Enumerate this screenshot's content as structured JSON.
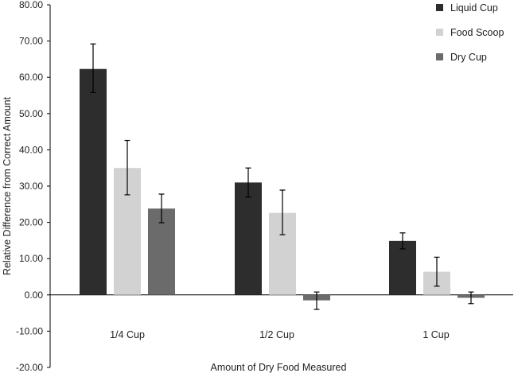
{
  "chart_data": {
    "type": "bar",
    "title": "",
    "xlabel": "Amount of Dry Food Measured",
    "ylabel": "Relative Difference from Correct Amount",
    "ylim": [
      -20,
      80
    ],
    "yticks": [
      "80.00",
      "70.00",
      "60.00",
      "50.00",
      "40.00",
      "30.00",
      "20.00",
      "10.00",
      "0.00",
      "-10.00",
      "-20.00"
    ],
    "ytick_values": [
      80,
      70,
      60,
      50,
      40,
      30,
      20,
      10,
      0,
      -10,
      -20
    ],
    "categories": [
      "1/4 Cup",
      "1/2 Cup",
      "1 Cup"
    ],
    "grid": false,
    "legend_position": "top-right",
    "series": [
      {
        "name": "Liquid Cup",
        "color": "#2d2d2d",
        "values": [
          62.3,
          31.0,
          14.9
        ],
        "err_low": [
          55.8,
          27.0,
          12.7
        ],
        "err_high": [
          69.2,
          35.0,
          17.1
        ]
      },
      {
        "name": "Food Scoop",
        "color": "#d2d2d2",
        "values": [
          35.0,
          22.6,
          6.4
        ],
        "err_low": [
          27.6,
          16.6,
          2.4
        ],
        "err_high": [
          42.6,
          28.9,
          10.4
        ]
      },
      {
        "name": "Dry Cup",
        "color": "#6b6b6b",
        "values": [
          23.8,
          -1.5,
          -0.8
        ],
        "err_low": [
          19.9,
          -4.0,
          -2.4
        ],
        "err_high": [
          27.8,
          0.8,
          0.8
        ]
      }
    ]
  }
}
